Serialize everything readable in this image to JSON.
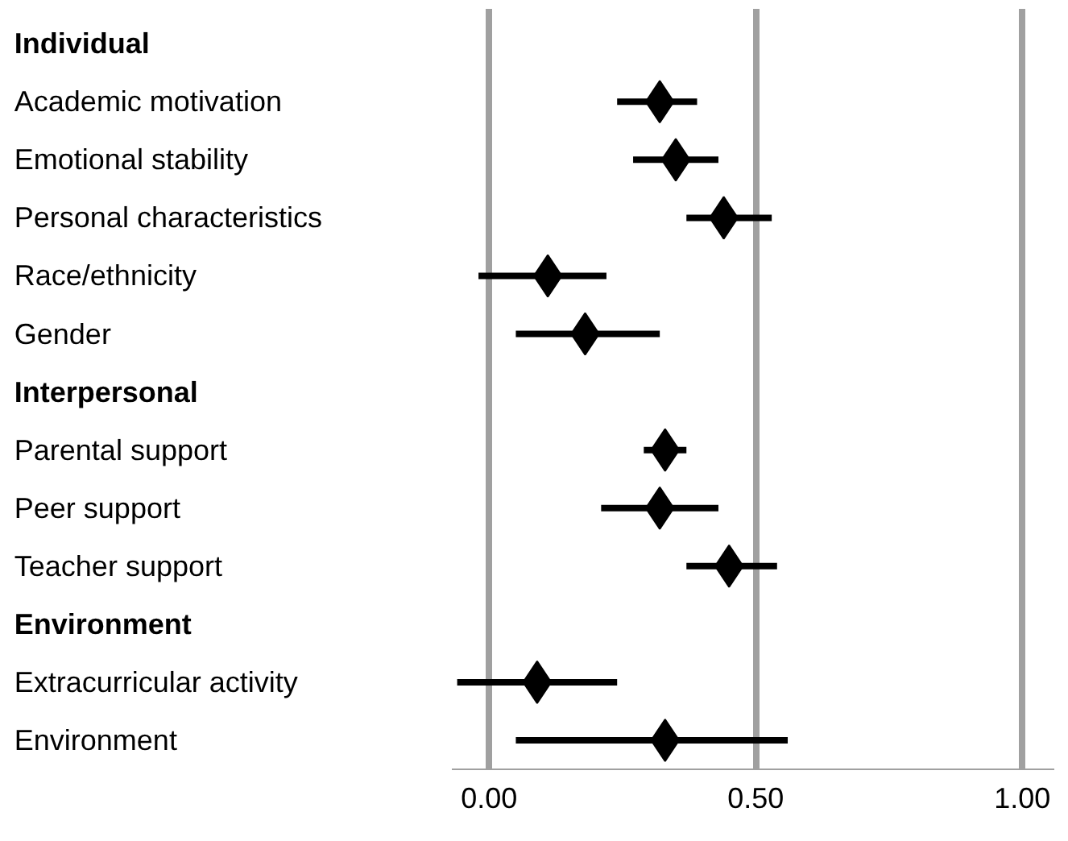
{
  "chart_data": {
    "type": "scatter",
    "orientation": "horizontal",
    "marker": "diamond",
    "color": "#000000",
    "categories": [
      "Individual",
      "Academic motivation",
      "Emotional stability",
      "Personal characteristics",
      "Race/ethnicity",
      "Gender",
      "Interpersonal",
      "Parental support",
      "Peer support",
      "Teacher support",
      "Environment",
      "Extracurricular activity",
      "Environment"
    ],
    "values": [
      null,
      0.32,
      0.35,
      0.44,
      0.11,
      0.18,
      null,
      0.33,
      0.32,
      0.45,
      null,
      0.09,
      0.33
    ],
    "errors": [
      null,
      [
        0.24,
        0.39
      ],
      [
        0.27,
        0.43
      ],
      [
        0.37,
        0.53
      ],
      [
        -0.02,
        0.22
      ],
      [
        0.05,
        0.32
      ],
      null,
      [
        0.29,
        0.37
      ],
      [
        0.21,
        0.43
      ],
      [
        0.37,
        0.54
      ],
      null,
      [
        -0.06,
        0.24
      ],
      [
        0.05,
        0.56
      ]
    ],
    "xlim": [
      -0.07,
      1.06
    ],
    "xticks": [
      {
        "value": 0,
        "label": "0.00"
      },
      {
        "value": 0.5,
        "label": "0.50"
      },
      {
        "value": 1,
        "label": "1.00"
      }
    ],
    "grid": "x"
  }
}
